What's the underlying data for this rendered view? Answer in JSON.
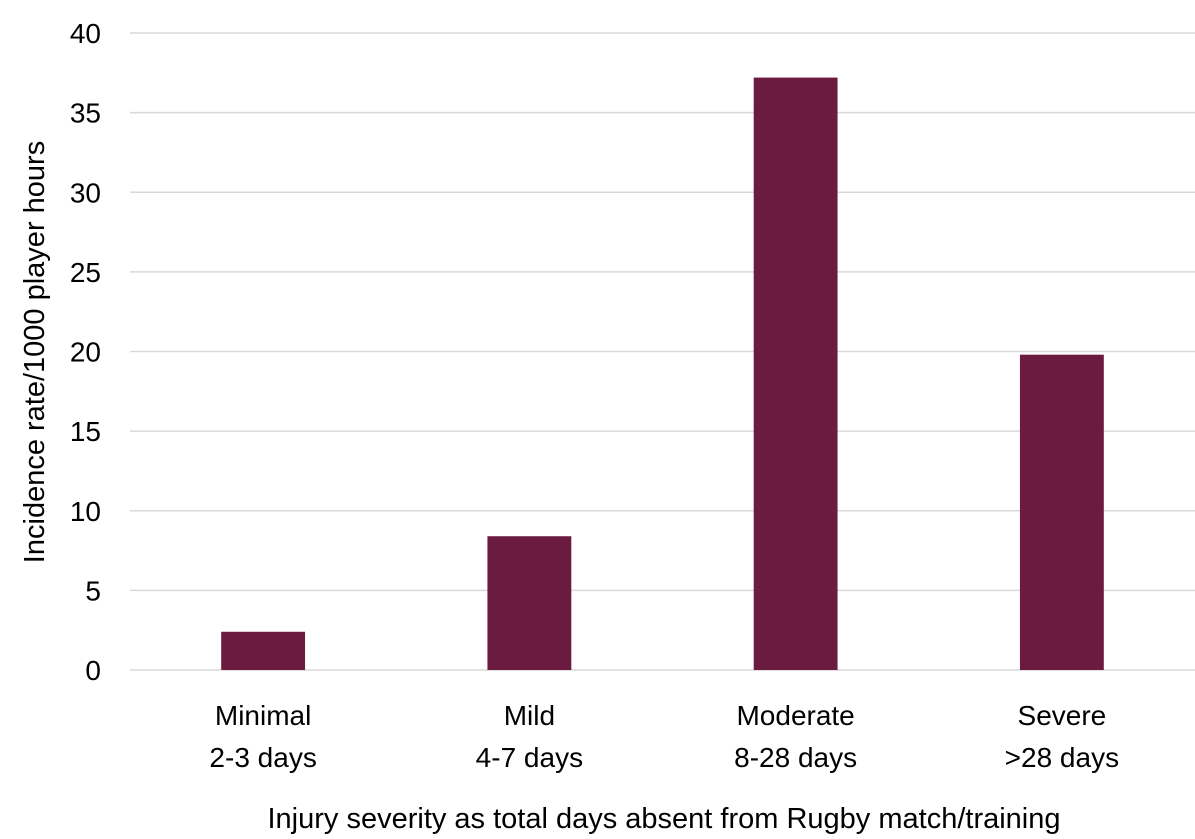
{
  "chart_data": {
    "type": "bar",
    "title": "",
    "xlabel": "Injury severity as total days absent from Rugby match/training",
    "ylabel": "Incidence rate/1000 player hours",
    "categories": [
      [
        "Minimal",
        "2-3 days"
      ],
      [
        "Mild",
        "4-7 days"
      ],
      [
        "Moderate",
        "8-28 days"
      ],
      [
        "Severe",
        ">28 days"
      ]
    ],
    "values": [
      2.4,
      8.4,
      37.2,
      19.8
    ],
    "ylim": [
      0,
      40
    ],
    "yticks": [
      0,
      5,
      10,
      15,
      20,
      25,
      30,
      35,
      40
    ],
    "grid": true,
    "legend": "none",
    "bar_color": "#6B1A40",
    "grid_color": "#D9D9D9"
  }
}
